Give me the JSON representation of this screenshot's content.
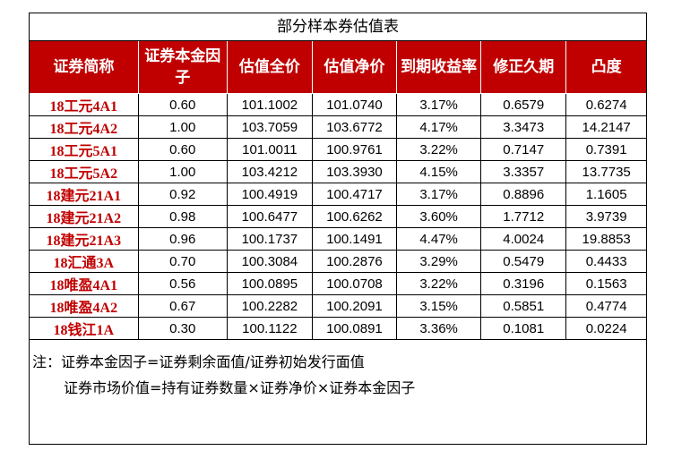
{
  "title": "部分样本券估值表",
  "columns": [
    "证券简称",
    "证券本金因子",
    "估值全价",
    "估值净价",
    "到期收益率",
    "修正久期",
    "凸度"
  ],
  "rows": [
    [
      "18工元4A1",
      "0.60",
      "101.1002",
      "101.0740",
      "3.17%",
      "0.6579",
      "0.6274"
    ],
    [
      "18工元4A2",
      "1.00",
      "103.7059",
      "103.6772",
      "4.17%",
      "3.3473",
      "14.2147"
    ],
    [
      "18工元5A1",
      "0.60",
      "101.0011",
      "100.9761",
      "3.22%",
      "0.7147",
      "0.7391"
    ],
    [
      "18工元5A2",
      "1.00",
      "103.4212",
      "103.3930",
      "4.15%",
      "3.3357",
      "13.7735"
    ],
    [
      "18建元21A1",
      "0.92",
      "100.4919",
      "100.4717",
      "3.17%",
      "0.8896",
      "1.1605"
    ],
    [
      "18建元21A2",
      "0.98",
      "100.6477",
      "100.6262",
      "3.60%",
      "1.7712",
      "3.9739"
    ],
    [
      "18建元21A3",
      "0.96",
      "100.1737",
      "100.1491",
      "4.47%",
      "4.0024",
      "19.8853"
    ],
    [
      "18汇通3A",
      "0.70",
      "100.3084",
      "100.2876",
      "3.29%",
      "0.5479",
      "0.4433"
    ],
    [
      "18唯盈4A1",
      "0.56",
      "100.0895",
      "100.0708",
      "3.22%",
      "0.3196",
      "0.1563"
    ],
    [
      "18唯盈4A2",
      "0.67",
      "100.2282",
      "100.2091",
      "3.15%",
      "0.5851",
      "0.4774"
    ],
    [
      "18钱江1A",
      "0.30",
      "100.1122",
      "100.0891",
      "3.36%",
      "0.1081",
      "0.0224"
    ]
  ],
  "notes": {
    "line1": "注：证券本金因子=证券剩余面值/证券初始发行面值",
    "line2": "证券市场价值=持有证券数量×证券净价×证券本金因子"
  },
  "colors": {
    "header_bg": "#c00000",
    "header_text": "#ffffff",
    "name_text": "#c00000"
  }
}
